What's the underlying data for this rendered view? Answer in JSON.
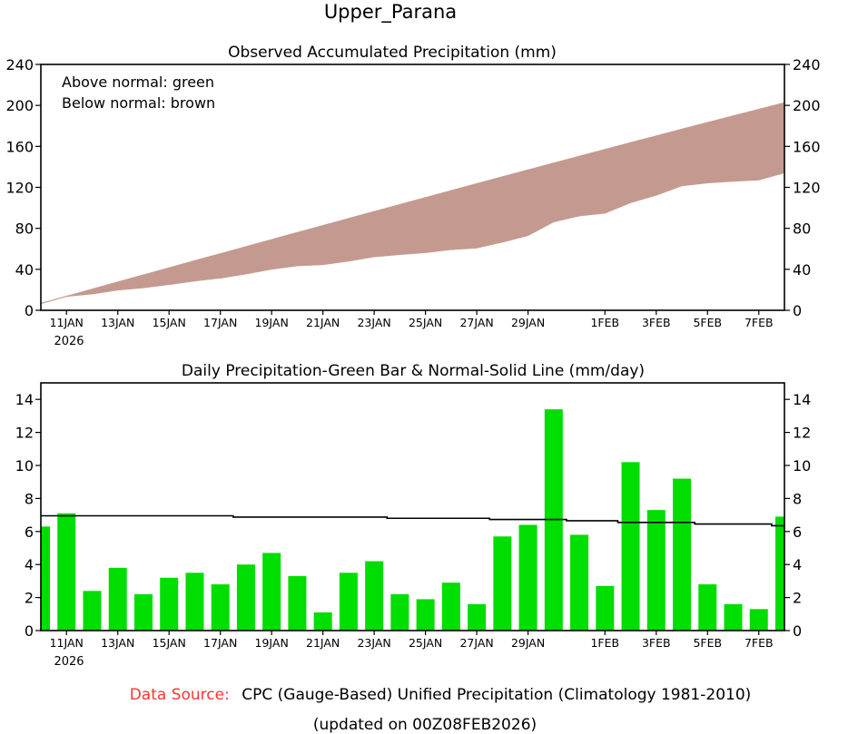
{
  "page_title": "Upper_Parana",
  "footer": {
    "source_label": "Data Source:",
    "source_text": "CPC (Gauge-Based) Unified Precipitation (Climatology 1981-2010)",
    "updated": "(updated on 00Z08FEB2026)"
  },
  "colors": {
    "below_fill": "#c49a90",
    "bar": "#00dd00",
    "source_label": "#ff3333",
    "line": "#000000"
  },
  "chart_data": [
    {
      "type": "area",
      "title": "Observed Accumulated Precipitation (mm)",
      "legend": [
        "Above normal: green",
        "Below normal: brown"
      ],
      "legend_position": "top-left",
      "ylim": [
        0,
        240
      ],
      "yticks": [
        0,
        40,
        80,
        120,
        160,
        200,
        240
      ],
      "ytick_labels": [
        "0",
        "40",
        "80",
        "120",
        "160",
        "200",
        "240"
      ],
      "xtick_labels": [
        "11JAN",
        "13JAN",
        "15JAN",
        "17JAN",
        "19JAN",
        "21JAN",
        "23JAN",
        "25JAN",
        "27JAN",
        "29JAN",
        "1FEB",
        "3FEB",
        "5FEB",
        "7FEB"
      ],
      "xtick_day_index": [
        1,
        3,
        5,
        7,
        9,
        11,
        13,
        15,
        17,
        19,
        22,
        24,
        26,
        28
      ],
      "year_label": "2026",
      "series": [
        {
          "name": "Observed accumulated",
          "values": [
            6.3,
            13.4,
            15.8,
            19.6,
            21.8,
            25.0,
            28.5,
            31.3,
            35.3,
            40.0,
            43.3,
            44.4,
            47.9,
            52.1,
            54.3,
            56.2,
            59.1,
            60.7,
            66.4,
            72.8,
            86.2,
            92.0,
            94.7,
            104.9,
            112.2,
            121.4,
            124.2,
            125.8,
            127.1,
            134.0
          ]
        },
        {
          "name": "Normal accumulated",
          "values": [
            6.9,
            13.9,
            20.8,
            27.8,
            34.7,
            41.6,
            48.6,
            55.4,
            62.3,
            69.2,
            76.1,
            82.9,
            89.8,
            96.6,
            103.4,
            110.2,
            117.0,
            123.8,
            130.5,
            137.2,
            143.9,
            150.6,
            157.2,
            163.8,
            170.4,
            177.0,
            183.5,
            190.0,
            196.4,
            202.8
          ]
        }
      ]
    },
    {
      "type": "bar",
      "title": "Daily Precipitation-Green Bar & Normal-Solid Line (mm/day)",
      "ylim": [
        0,
        15
      ],
      "yticks": [
        0,
        2,
        4,
        6,
        8,
        10,
        12,
        14
      ],
      "ytick_labels": [
        "0",
        "2",
        "4",
        "6",
        "8",
        "10",
        "12",
        "14"
      ],
      "xtick_labels": [
        "11JAN",
        "13JAN",
        "15JAN",
        "17JAN",
        "19JAN",
        "21JAN",
        "23JAN",
        "25JAN",
        "27JAN",
        "29JAN",
        "1FEB",
        "3FEB",
        "5FEB",
        "7FEB"
      ],
      "xtick_day_index": [
        1,
        3,
        5,
        7,
        9,
        11,
        13,
        15,
        17,
        19,
        22,
        24,
        26,
        28
      ],
      "year_label": "2026",
      "categories": [
        "10JAN",
        "11JAN",
        "12JAN",
        "13JAN",
        "14JAN",
        "15JAN",
        "16JAN",
        "17JAN",
        "18JAN",
        "19JAN",
        "20JAN",
        "21JAN",
        "22JAN",
        "23JAN",
        "24JAN",
        "25JAN",
        "26JAN",
        "27JAN",
        "28JAN",
        "29JAN",
        "30JAN",
        "31JAN",
        "1FEB",
        "2FEB",
        "3FEB",
        "4FEB",
        "5FEB",
        "6FEB",
        "7FEB",
        "8FEB"
      ],
      "series": [
        {
          "name": "Daily precipitation",
          "values": [
            6.3,
            7.1,
            2.4,
            3.8,
            2.2,
            3.2,
            3.5,
            2.8,
            4.0,
            4.7,
            3.3,
            1.1,
            3.5,
            4.2,
            2.2,
            1.9,
            2.9,
            1.6,
            5.7,
            6.4,
            13.4,
            5.8,
            2.7,
            10.2,
            7.3,
            9.2,
            2.8,
            1.6,
            1.3,
            6.9
          ]
        },
        {
          "name": "Normal",
          "values": [
            6.95,
            6.95,
            6.95,
            6.95,
            6.95,
            6.95,
            6.95,
            6.95,
            6.87,
            6.87,
            6.87,
            6.87,
            6.87,
            6.87,
            6.8,
            6.8,
            6.8,
            6.8,
            6.73,
            6.73,
            6.73,
            6.65,
            6.65,
            6.55,
            6.55,
            6.55,
            6.45,
            6.45,
            6.45,
            6.35
          ]
        }
      ]
    }
  ]
}
